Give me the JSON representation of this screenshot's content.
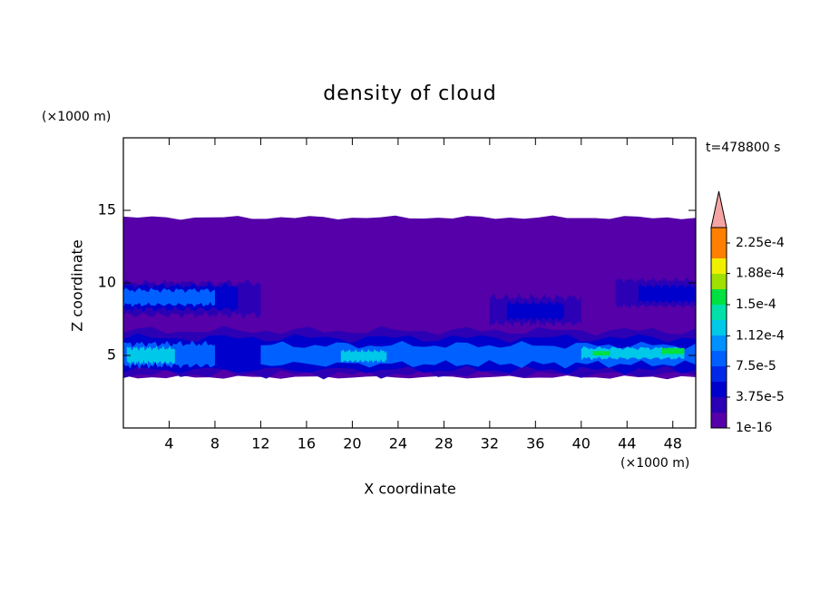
{
  "chart_data": {
    "type": "contour",
    "title": "density of cloud",
    "x_label": "X coordinate",
    "y_label": "Z coordinate",
    "x_unit": "(×1000 m)",
    "y_unit": "(×1000 m)",
    "annotation": "t=478800 s",
    "xlim": [
      0,
      50
    ],
    "ylim": [
      0,
      20
    ],
    "xticks": [
      4,
      8,
      12,
      16,
      20,
      24,
      28,
      32,
      36,
      40,
      44,
      48
    ],
    "yticks": [
      5,
      10,
      15
    ],
    "levels": [
      1e-16,
      1.875e-05,
      3.75e-05,
      5.625e-05,
      7.5e-05,
      9.375e-05,
      0.0001125,
      0.00013125,
      0.00015,
      0.00016875,
      0.0001875,
      0.00020625,
      0.000225
    ],
    "colors": [
      "#5500a8",
      "#2c00b4",
      "#0000cc",
      "#0028e8",
      "#0060ff",
      "#0090ff",
      "#00c8e8",
      "#00e0a8",
      "#00e040",
      "#a0e000",
      "#f0f000",
      "#ffc000",
      "#ff8000",
      "#ff3000"
    ],
    "extend_color": "#f4a4a4",
    "colorbar_ticks": [
      1e-16,
      {
        "value": 3.75e-05,
        "label": "3.75e-5"
      },
      {
        "value": 7.5e-05,
        "label": "7.5e-5"
      },
      {
        "value": 0.000112,
        "label": "1.12e-4"
      },
      {
        "value": 0.00015,
        "label": "1.5e-4"
      },
      {
        "value": 0.000188,
        "label": "1.88e-4"
      },
      {
        "value": 0.000225,
        "label": "2.25e-4"
      }
    ]
  }
}
